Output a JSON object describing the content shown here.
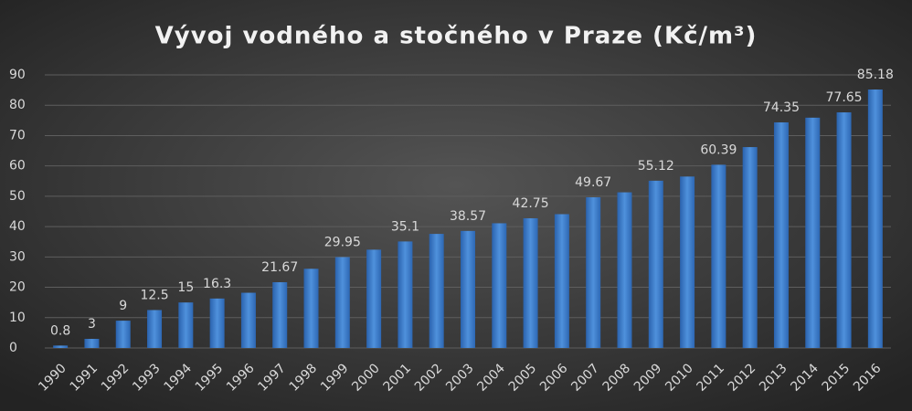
{
  "chart_data": {
    "type": "bar",
    "title": "Vývoj vodného a stočného v Praze (Kč/m³)",
    "categories": [
      "1990",
      "1991",
      "1992",
      "1993",
      "1994",
      "1995",
      "1996",
      "1997",
      "1998",
      "1999",
      "2000",
      "2001",
      "2002",
      "2003",
      "2004",
      "2005",
      "2006",
      "2007",
      "2008",
      "2009",
      "2010",
      "2011",
      "2012",
      "2013",
      "2014",
      "2015",
      "2016"
    ],
    "values": [
      0.8,
      3,
      9,
      12.5,
      15,
      16.3,
      18.2,
      21.67,
      26.1,
      29.95,
      32.4,
      35.1,
      37.6,
      38.57,
      41.1,
      42.75,
      44.1,
      49.67,
      51.3,
      55.12,
      56.5,
      60.39,
      66.2,
      74.35,
      75.9,
      77.65,
      85.18
    ],
    "value_labels": [
      "0.8",
      "3",
      "9",
      "12.5",
      "15",
      "16.3",
      null,
      "21.67",
      null,
      "29.95",
      null,
      "35.1",
      null,
      "38.57",
      null,
      "42.75",
      null,
      "49.67",
      null,
      "55.12",
      null,
      "60.39",
      null,
      "74.35",
      null,
      "77.65",
      "85.18"
    ],
    "color": "#4a8ad6",
    "ylim": [
      0,
      90
    ],
    "yticks": [
      0,
      10,
      20,
      30,
      40,
      50,
      60,
      70,
      80,
      90
    ],
    "grid": true
  }
}
